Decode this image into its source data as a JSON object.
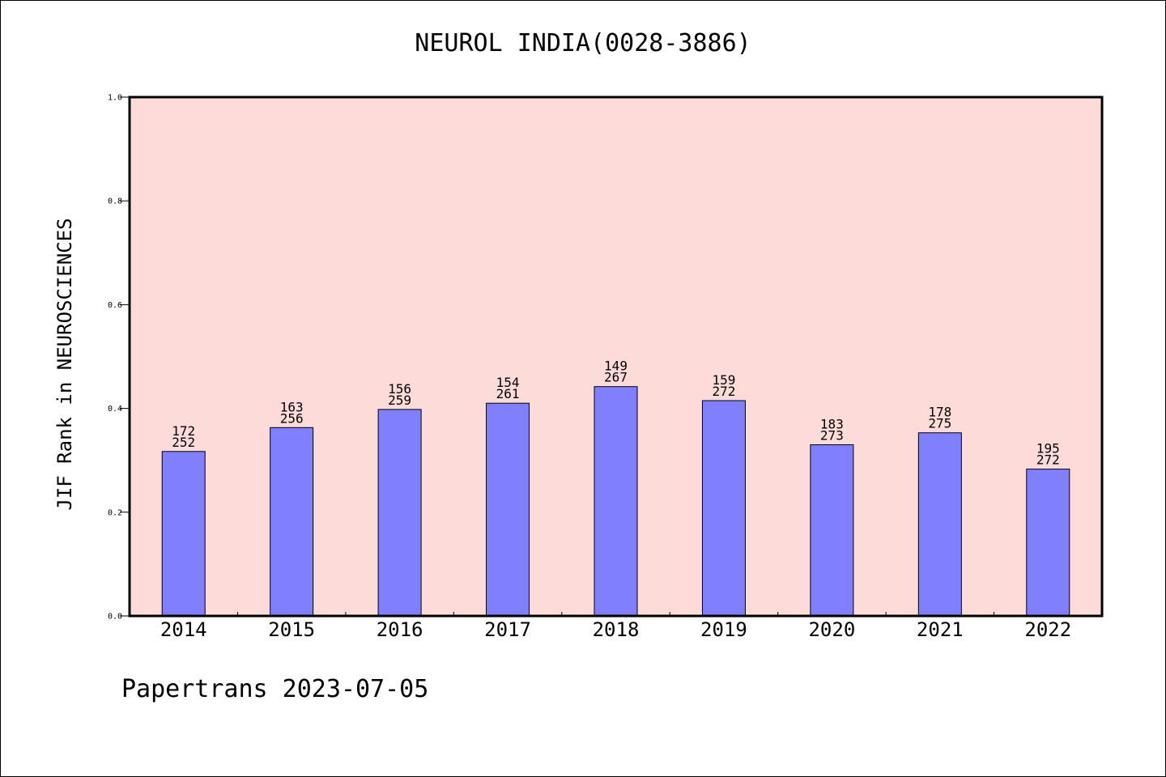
{
  "chart_data": {
    "type": "bar",
    "title": "NEUROL INDIA(0028-3886)",
    "ylabel": "JIF Rank in NEUROSCIENCES",
    "xlabel": "",
    "categories": [
      "2014",
      "2015",
      "2016",
      "2017",
      "2018",
      "2019",
      "2020",
      "2021",
      "2022"
    ],
    "values": [
      0.317,
      0.363,
      0.398,
      0.41,
      0.442,
      0.415,
      0.33,
      0.353,
      0.283
    ],
    "ranks": [
      "172",
      "163",
      "156",
      "154",
      "149",
      "159",
      "183",
      "178",
      "195"
    ],
    "totals": [
      "252",
      "256",
      "259",
      "261",
      "267",
      "272",
      "273",
      "275",
      "272"
    ],
    "ylim": [
      0,
      1.0
    ],
    "yticks": [
      "0.0",
      "0.2",
      "0.4",
      "0.6",
      "0.8",
      "1.0"
    ],
    "grid": false,
    "colors": {
      "plot_bg": "#FDDBD8",
      "bar": "#8080FF"
    }
  },
  "footer": {
    "watermark": "Papertrans 2023-07-05"
  }
}
